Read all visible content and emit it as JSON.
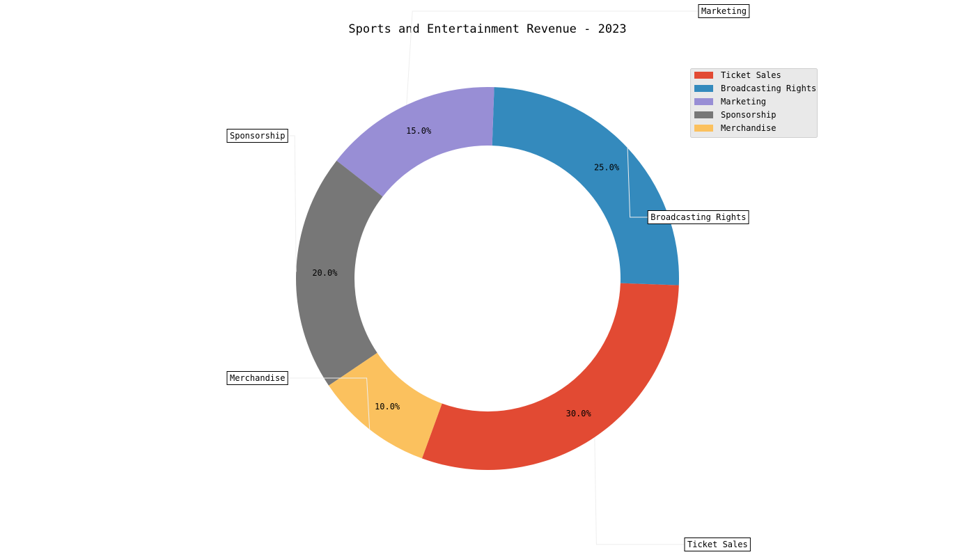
{
  "chart_data": {
    "type": "pie",
    "style": "donut",
    "title": "Sports and Entertainment Revenue - 2023",
    "categories": [
      "Ticket Sales",
      "Broadcasting Rights",
      "Marketing",
      "Sponsorship",
      "Merchandise"
    ],
    "values": [
      30,
      25,
      15,
      20,
      10
    ],
    "percent_labels": [
      "30.0%",
      "25.0%",
      "15.0%",
      "20.0%",
      "10.0%"
    ],
    "colors": [
      "#E24A33",
      "#348ABD",
      "#988ED5",
      "#777777",
      "#FBC15E"
    ],
    "start_angle_deg": 250,
    "direction": "counterclockwise",
    "legend": {
      "placement": "top-right",
      "entries": [
        "Ticket Sales",
        "Broadcasting Rights",
        "Marketing",
        "Sponsorship",
        "Merchandise"
      ]
    }
  }
}
